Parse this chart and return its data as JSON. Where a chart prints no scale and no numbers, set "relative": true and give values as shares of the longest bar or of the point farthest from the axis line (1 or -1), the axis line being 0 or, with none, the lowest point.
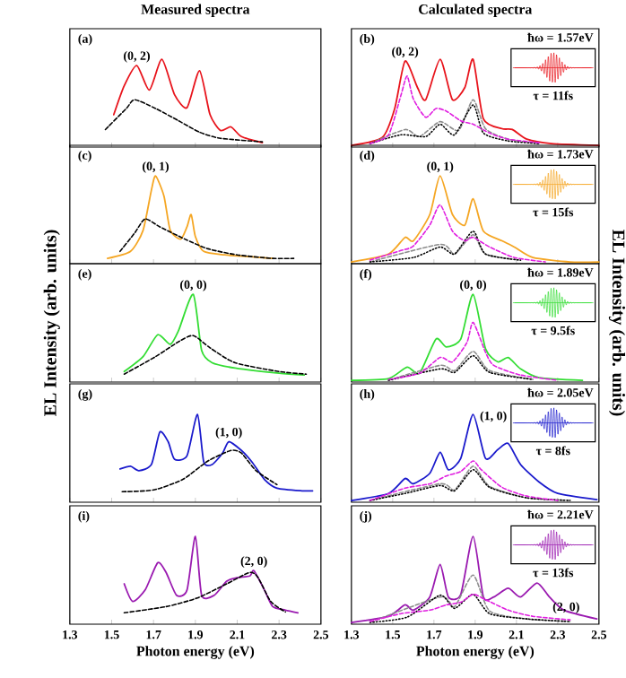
{
  "chart_data": [
    {
      "type": "line",
      "title": "Measured spectra",
      "relative": true,
      "xlim": [
        1.3,
        2.5
      ],
      "xticks": [
        1.3,
        1.5,
        1.7,
        1.9,
        2.1,
        2.3,
        2.5
      ],
      "tick_labels": false,
      "annotations": [
        "(a)",
        {
          "text": "(0, 2)",
          "x": 1.62,
          "y": 0.93
        }
      ],
      "series": [
        {
          "color": "#e8141c",
          "line_style": "solid",
          "x": [
            1.51,
            1.56,
            1.62,
            1.68,
            1.74,
            1.8,
            1.86,
            1.92,
            1.97,
            2.02,
            2.07,
            2.12,
            2.22
          ],
          "values": [
            0.37,
            0.7,
            0.93,
            0.65,
            1.0,
            0.6,
            0.45,
            0.87,
            0.37,
            0.19,
            0.23,
            0.12,
            0.05
          ]
        },
        {
          "color": "#000000",
          "line_style": "dashed",
          "x": [
            1.47,
            1.57,
            1.61,
            1.71,
            1.82,
            1.92,
            2.02,
            2.22
          ],
          "values": [
            0.2,
            0.44,
            0.54,
            0.44,
            0.3,
            0.17,
            0.1,
            0.06
          ]
        }
      ]
    },
    {
      "type": "line",
      "title": "Calculated spectra",
      "relative": true,
      "xlim": [
        1.3,
        2.5
      ],
      "xticks": [
        1.3,
        1.5,
        1.7,
        1.9,
        2.1,
        2.3,
        2.5
      ],
      "tick_labels": false,
      "annotations": [
        "(b)",
        {
          "text": "(0, 2)",
          "x": 1.56,
          "y": 0.98
        },
        "ħω = 1.57eV",
        "τ = 11fs"
      ],
      "series": [
        {
          "color": "#e8141c",
          "line_style": "solid",
          "x": [
            1.3,
            1.45,
            1.51,
            1.56,
            1.62,
            1.66,
            1.73,
            1.79,
            1.85,
            1.89,
            1.94,
            2.03,
            2.08,
            2.15,
            2.27,
            2.5
          ],
          "values": [
            0.02,
            0.11,
            0.44,
            0.98,
            0.68,
            0.54,
            1.0,
            0.54,
            0.68,
            1.0,
            0.32,
            0.21,
            0.2,
            0.09,
            0.04,
            0.02
          ]
        },
        {
          "color": "#e01ee0",
          "line_style": "dashed",
          "x": [
            1.39,
            1.48,
            1.54,
            1.57,
            1.6,
            1.66,
            1.71,
            1.76,
            1.83,
            1.89,
            1.97,
            2.06,
            2.21
          ],
          "values": [
            0.04,
            0.14,
            0.59,
            0.81,
            0.55,
            0.34,
            0.44,
            0.41,
            0.3,
            0.26,
            0.16,
            0.09,
            0.05
          ]
        },
        {
          "color": "#000000",
          "line_style": "dotted",
          "x": [
            1.39,
            1.54,
            1.66,
            1.73,
            1.8,
            1.89,
            1.94,
            2.06,
            2.21
          ],
          "values": [
            0.04,
            0.14,
            0.12,
            0.26,
            0.14,
            0.48,
            0.16,
            0.07,
            0.04
          ]
        },
        {
          "color": "#8c8c8c",
          "line_style": "dashed",
          "x": [
            1.39,
            1.56,
            1.63,
            1.73,
            1.82,
            1.89,
            1.95,
            2.06,
            2.21
          ],
          "values": [
            0.04,
            0.2,
            0.12,
            0.29,
            0.19,
            0.54,
            0.21,
            0.09,
            0.04
          ]
        }
      ]
    },
    {
      "type": "line",
      "relative": true,
      "xlim": [
        1.3,
        2.5
      ],
      "xticks": [
        1.3,
        1.5,
        1.7,
        1.9,
        2.1,
        2.3,
        2.5
      ],
      "tick_labels": false,
      "annotations": [
        "(c)",
        {
          "text": "(0, 1)",
          "x": 1.71,
          "y": 1.0
        }
      ],
      "series": [
        {
          "color": "#f5a623",
          "line_style": "solid",
          "x": [
            1.48,
            1.59,
            1.65,
            1.69,
            1.71,
            1.75,
            1.78,
            1.83,
            1.86,
            1.88,
            1.9,
            1.94,
            2.04,
            2.16,
            2.27
          ],
          "values": [
            0.06,
            0.14,
            0.38,
            0.84,
            1.0,
            0.77,
            0.38,
            0.28,
            0.42,
            0.56,
            0.31,
            0.14,
            0.1,
            0.08,
            0.06
          ]
        },
        {
          "color": "#000000",
          "line_style": "dashed",
          "x": [
            1.54,
            1.61,
            1.66,
            1.73,
            1.85,
            1.96,
            2.1,
            2.27,
            2.37
          ],
          "values": [
            0.14,
            0.35,
            0.51,
            0.42,
            0.28,
            0.17,
            0.1,
            0.06,
            0.06
          ]
        }
      ]
    },
    {
      "type": "line",
      "relative": true,
      "xlim": [
        1.3,
        2.5
      ],
      "xticks": [
        1.3,
        1.5,
        1.7,
        1.9,
        2.1,
        2.3,
        2.5
      ],
      "tick_labels": false,
      "annotations": [
        "(d)",
        {
          "text": "(0, 1)",
          "x": 1.73,
          "y": 1.0
        },
        "ħω = 1.73eV",
        "τ = 15fs"
      ],
      "series": [
        {
          "color": "#f5a623",
          "line_style": "solid",
          "x": [
            1.3,
            1.48,
            1.56,
            1.6,
            1.68,
            1.73,
            1.79,
            1.85,
            1.89,
            1.94,
            2.03,
            2.09,
            2.18,
            2.36,
            2.5
          ],
          "values": [
            0.02,
            0.11,
            0.3,
            0.26,
            0.56,
            1.0,
            0.56,
            0.44,
            0.74,
            0.37,
            0.26,
            0.19,
            0.07,
            0.02,
            0.02
          ]
        },
        {
          "color": "#e01ee0",
          "line_style": "dashed",
          "x": [
            1.39,
            1.54,
            1.6,
            1.68,
            1.73,
            1.79,
            1.85,
            1.89,
            1.97,
            2.09,
            2.24
          ],
          "values": [
            0.04,
            0.15,
            0.2,
            0.44,
            0.67,
            0.37,
            0.26,
            0.3,
            0.19,
            0.07,
            0.02
          ]
        },
        {
          "color": "#000000",
          "line_style": "dotted",
          "x": [
            1.39,
            1.6,
            1.73,
            1.8,
            1.89,
            1.95,
            2.12
          ],
          "values": [
            0.02,
            0.07,
            0.19,
            0.11,
            0.37,
            0.11,
            0.04
          ]
        },
        {
          "color": "#8c8c8c",
          "line_style": "dashed",
          "x": [
            1.39,
            1.73,
            1.8,
            1.89,
            1.95,
            2.12
          ],
          "values": [
            0.02,
            0.22,
            0.11,
            0.33,
            0.11,
            0.04
          ]
        }
      ]
    },
    {
      "type": "line",
      "ylabel": "EL Intensity (arb. units)",
      "relative": true,
      "xlim": [
        1.3,
        2.5
      ],
      "xticks": [
        1.3,
        1.5,
        1.7,
        1.9,
        2.1,
        2.3,
        2.5
      ],
      "tick_labels": false,
      "annotations": [
        "(e)",
        {
          "text": "(0, 0)",
          "x": 1.89,
          "y": 1.0
        }
      ],
      "series": [
        {
          "color": "#33dd33",
          "line_style": "solid",
          "x": [
            1.56,
            1.65,
            1.72,
            1.78,
            1.82,
            1.89,
            1.93,
            1.98,
            2.09,
            2.3,
            2.42
          ],
          "values": [
            0.12,
            0.29,
            0.54,
            0.43,
            0.59,
            1.0,
            0.36,
            0.22,
            0.16,
            0.1,
            0.08
          ]
        },
        {
          "color": "#000000",
          "line_style": "dashed",
          "x": [
            1.56,
            1.71,
            1.82,
            1.89,
            1.97,
            2.09,
            2.3,
            2.43
          ],
          "values": [
            0.09,
            0.29,
            0.46,
            0.53,
            0.39,
            0.22,
            0.12,
            0.09
          ]
        }
      ]
    },
    {
      "type": "line",
      "ylabel": "EL Intensity (arb. units)",
      "relative": true,
      "xlim": [
        1.3,
        2.5
      ],
      "xticks": [
        1.3,
        1.5,
        1.7,
        1.9,
        2.1,
        2.3,
        2.5
      ],
      "tick_labels": false,
      "annotations": [
        "(f)",
        {
          "text": "(0, 0)",
          "x": 1.89,
          "y": 1.0
        },
        "ħω = 1.89eV",
        "τ = 9.5fs"
      ],
      "series": [
        {
          "color": "#33dd33",
          "line_style": "solid",
          "x": [
            1.3,
            1.48,
            1.57,
            1.63,
            1.71,
            1.76,
            1.83,
            1.89,
            1.95,
            2.01,
            2.06,
            2.12,
            2.21,
            2.42
          ],
          "values": [
            0.02,
            0.04,
            0.17,
            0.1,
            0.49,
            0.4,
            0.49,
            1.0,
            0.38,
            0.23,
            0.28,
            0.15,
            0.05,
            0.02
          ]
        },
        {
          "color": "#e01ee0",
          "line_style": "dashed",
          "x": [
            1.48,
            1.63,
            1.73,
            1.79,
            1.86,
            1.89,
            1.95,
            1.99,
            2.12,
            2.3
          ],
          "values": [
            0.03,
            0.1,
            0.28,
            0.23,
            0.45,
            0.68,
            0.34,
            0.19,
            0.08,
            0.02
          ]
        },
        {
          "color": "#000000",
          "line_style": "dotted",
          "x": [
            1.48,
            1.73,
            1.8,
            1.89,
            1.97,
            2.18
          ],
          "values": [
            0.02,
            0.15,
            0.11,
            0.3,
            0.11,
            0.03
          ]
        },
        {
          "color": "#8c8c8c",
          "line_style": "dashed",
          "x": [
            1.48,
            1.73,
            1.8,
            1.89,
            1.97,
            2.18
          ],
          "values": [
            0.02,
            0.19,
            0.13,
            0.35,
            0.13,
            0.03
          ]
        }
      ]
    },
    {
      "type": "line",
      "relative": true,
      "xlim": [
        1.3,
        2.5
      ],
      "xticks": [
        1.3,
        1.5,
        1.7,
        1.9,
        2.1,
        2.3,
        2.5
      ],
      "tick_labels": false,
      "annotations": [
        "(g)",
        {
          "text": "(1, 0)",
          "x": 2.06,
          "y": 0.69
        }
      ],
      "series": [
        {
          "color": "#1a1acc",
          "line_style": "solid",
          "x": [
            1.54,
            1.59,
            1.63,
            1.69,
            1.73,
            1.77,
            1.8,
            1.86,
            1.91,
            1.94,
            1.98,
            2.03,
            2.06,
            2.12,
            2.17,
            2.23,
            2.29,
            2.41,
            2.46
          ],
          "values": [
            0.38,
            0.41,
            0.36,
            0.43,
            0.8,
            0.69,
            0.49,
            0.53,
            1.0,
            0.46,
            0.43,
            0.56,
            0.69,
            0.59,
            0.46,
            0.26,
            0.16,
            0.13,
            0.13
          ]
        },
        {
          "color": "#000000",
          "line_style": "dashed",
          "x": [
            1.55,
            1.7,
            1.84,
            1.96,
            2.07,
            2.12,
            2.19,
            2.29
          ],
          "values": [
            0.12,
            0.14,
            0.26,
            0.47,
            0.59,
            0.56,
            0.36,
            0.2
          ]
        }
      ]
    },
    {
      "type": "line",
      "relative": true,
      "xlim": [
        1.3,
        2.5
      ],
      "xticks": [
        1.3,
        1.5,
        1.7,
        1.9,
        2.1,
        2.3,
        2.5
      ],
      "tick_labels": false,
      "annotations": [
        "(h)",
        {
          "text": "(1, 0)",
          "x": 2.06,
          "y": 0.67
        },
        "ħω = 2.05eV",
        "τ = 8fs"
      ],
      "series": [
        {
          "color": "#1a1acc",
          "line_style": "solid",
          "x": [
            1.3,
            1.48,
            1.56,
            1.6,
            1.68,
            1.73,
            1.77,
            1.83,
            1.89,
            1.95,
            2.01,
            2.06,
            2.12,
            2.21,
            2.3,
            2.49
          ],
          "values": [
            0.02,
            0.1,
            0.27,
            0.21,
            0.33,
            0.57,
            0.37,
            0.5,
            1.0,
            0.5,
            0.6,
            0.67,
            0.43,
            0.23,
            0.1,
            0.03
          ]
        },
        {
          "color": "#e01ee0",
          "line_style": "dashed",
          "x": [
            1.39,
            1.56,
            1.68,
            1.76,
            1.83,
            1.89,
            1.93,
            2.03,
            2.15,
            2.3
          ],
          "values": [
            0.02,
            0.16,
            0.21,
            0.3,
            0.35,
            0.47,
            0.37,
            0.17,
            0.07,
            0.02
          ]
        },
        {
          "color": "#000000",
          "line_style": "dotted",
          "x": [
            1.39,
            1.56,
            1.73,
            1.8,
            1.89,
            1.97,
            2.15,
            2.36
          ],
          "values": [
            0.02,
            0.1,
            0.19,
            0.13,
            0.37,
            0.17,
            0.05,
            0.02
          ]
        },
        {
          "color": "#8c8c8c",
          "line_style": "dashed",
          "x": [
            1.39,
            1.73,
            1.8,
            1.89,
            1.97,
            2.15,
            2.36
          ],
          "values": [
            0.02,
            0.21,
            0.14,
            0.41,
            0.18,
            0.05,
            0.02
          ]
        }
      ]
    },
    {
      "type": "line",
      "xlabel": "Photon energy (eV)",
      "relative": true,
      "xlim": [
        1.3,
        2.5
      ],
      "xticks": [
        1.3,
        1.5,
        1.7,
        1.9,
        2.1,
        2.3,
        2.5
      ],
      "tick_labels": "x",
      "annotations": [
        "(i)",
        {
          "text": "(2, 0)",
          "x": 2.18,
          "y": 0.61
        }
      ],
      "series": [
        {
          "color": "#9a1ab0",
          "line_style": "solid",
          "x": [
            1.56,
            1.6,
            1.66,
            1.72,
            1.76,
            1.81,
            1.86,
            1.9,
            1.93,
            1.99,
            2.05,
            2.1,
            2.16,
            2.18,
            2.23,
            2.27,
            2.33,
            2.39
          ],
          "values": [
            0.46,
            0.26,
            0.39,
            0.7,
            0.59,
            0.33,
            0.39,
            1.0,
            0.33,
            0.33,
            0.49,
            0.53,
            0.55,
            0.61,
            0.39,
            0.2,
            0.16,
            0.13
          ]
        },
        {
          "color": "#000000",
          "line_style": "dashed",
          "x": [
            1.56,
            1.76,
            1.91,
            2.05,
            2.16,
            2.2,
            2.26,
            2.33
          ],
          "values": [
            0.13,
            0.2,
            0.3,
            0.46,
            0.59,
            0.53,
            0.26,
            0.14
          ]
        }
      ]
    },
    {
      "type": "line",
      "xlabel": "Photon energy (eV)",
      "relative": true,
      "xlim": [
        1.3,
        2.5
      ],
      "xticks": [
        1.3,
        1.5,
        1.7,
        1.9,
        2.1,
        2.3,
        2.5
      ],
      "tick_labels": "x",
      "annotations": [
        "(j)",
        {
          "text": "(2, 0)",
          "x": 2.2,
          "y": 0.47
        },
        "ħω = 2.21eV",
        "τ = 13fs"
      ],
      "series": [
        {
          "color": "#9a1ab0",
          "line_style": "solid",
          "x": [
            1.3,
            1.48,
            1.56,
            1.6,
            1.68,
            1.73,
            1.77,
            1.83,
            1.89,
            1.94,
            1.99,
            2.06,
            2.12,
            2.2,
            2.26,
            2.33,
            2.49
          ],
          "values": [
            0.02,
            0.09,
            0.22,
            0.16,
            0.31,
            0.68,
            0.31,
            0.34,
            1.0,
            0.31,
            0.31,
            0.41,
            0.31,
            0.47,
            0.31,
            0.16,
            0.06
          ]
        },
        {
          "color": "#e01ee0",
          "line_style": "dashed",
          "x": [
            1.39,
            1.54,
            1.68,
            1.76,
            1.83,
            1.89,
            1.95,
            2.06,
            2.18,
            2.36
          ],
          "values": [
            0.03,
            0.12,
            0.16,
            0.22,
            0.25,
            0.34,
            0.28,
            0.16,
            0.09,
            0.05
          ]
        },
        {
          "color": "#000000",
          "line_style": "dotted",
          "x": [
            1.39,
            1.57,
            1.73,
            1.8,
            1.89,
            1.97,
            2.15,
            2.36
          ],
          "values": [
            0.02,
            0.08,
            0.33,
            0.18,
            0.34,
            0.12,
            0.06,
            0.03
          ]
        },
        {
          "color": "#8c8c8c",
          "line_style": "dashed",
          "x": [
            1.39,
            1.73,
            1.8,
            1.89,
            1.97,
            2.15,
            2.36
          ],
          "values": [
            0.02,
            0.31,
            0.2,
            0.56,
            0.15,
            0.06,
            0.03
          ]
        }
      ]
    }
  ]
}
